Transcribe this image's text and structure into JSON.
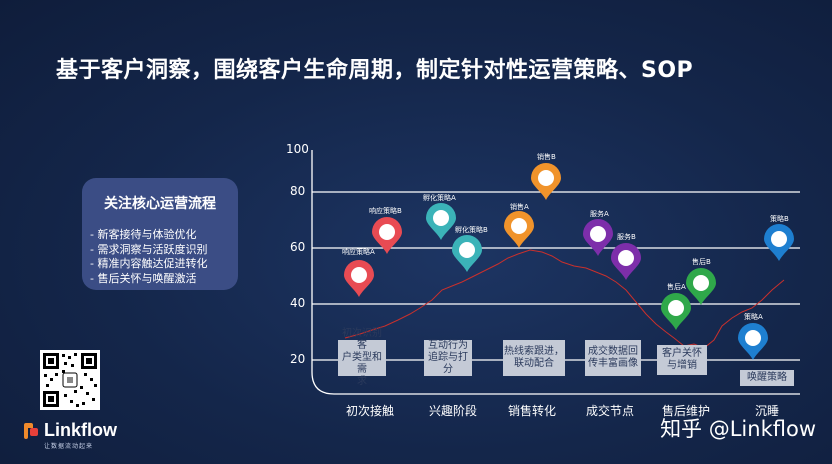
{
  "title": "基于客户洞察，围绕客户生命周期，制定针对性运营策略、SOP",
  "focus": {
    "title": "关注核心运营流程",
    "items": [
      "新客接待与体验优化",
      "需求洞察与活跃度识别",
      "精准内容触达促进转化",
      "售后关怀与唤醒激活"
    ]
  },
  "y_ticks": [
    "100",
    "80",
    "60",
    "40",
    "20"
  ],
  "stages": [
    {
      "label": "初次接触",
      "box": "初次识别客户类型和需求",
      "box_lines": [
        "初次识别客",
        "户类型和需",
        "求"
      ]
    },
    {
      "label": "兴趣阶段",
      "box": "互动行为追踪与打分",
      "box_lines": [
        "互动行为",
        "追踪与打",
        "分"
      ]
    },
    {
      "label": "销售转化",
      "box": "热线索跟进，联动配合",
      "box_lines": [
        "热线索跟进，",
        "联动配合"
      ]
    },
    {
      "label": "成交节点",
      "box": "成交数据回传丰富画像",
      "box_lines": [
        "成交数据回",
        "传丰富画像"
      ]
    },
    {
      "label": "售后维护",
      "box": "客户关怀与增销",
      "box_lines": [
        "客户关怀",
        "与增销"
      ]
    },
    {
      "label": "沉睡",
      "box": "唤醒策略",
      "box_lines": [
        "唤醒策略"
      ]
    }
  ],
  "pins": [
    {
      "label": "响应策略A",
      "color": "#e84b53"
    },
    {
      "label": "响应策略B",
      "color": "#e84b53"
    },
    {
      "label": "孵化策略A",
      "color": "#3bb3b8"
    },
    {
      "label": "孵化策略B",
      "color": "#3bb3b8"
    },
    {
      "label": "销售A",
      "color": "#f0932b"
    },
    {
      "label": "销售B",
      "color": "#f0932b"
    },
    {
      "label": "服务A",
      "color": "#7d2eaa"
    },
    {
      "label": "服务B",
      "color": "#7d2eaa"
    },
    {
      "label": "售后A",
      "color": "#2fa84a"
    },
    {
      "label": "售后B",
      "color": "#2fa84a"
    },
    {
      "label": "策略A",
      "color": "#1e7fd0"
    },
    {
      "label": "策略B",
      "color": "#1e7fd0"
    }
  ],
  "brand": {
    "name": "Linkflow",
    "tagline": "让数据流动起来"
  },
  "watermark": "知乎 @Linkflow",
  "qr_icon": "qr-code-icon",
  "colors": {
    "trend_line": "#c9302c",
    "grid": "#ffffff",
    "box": "#c4cad6"
  }
}
